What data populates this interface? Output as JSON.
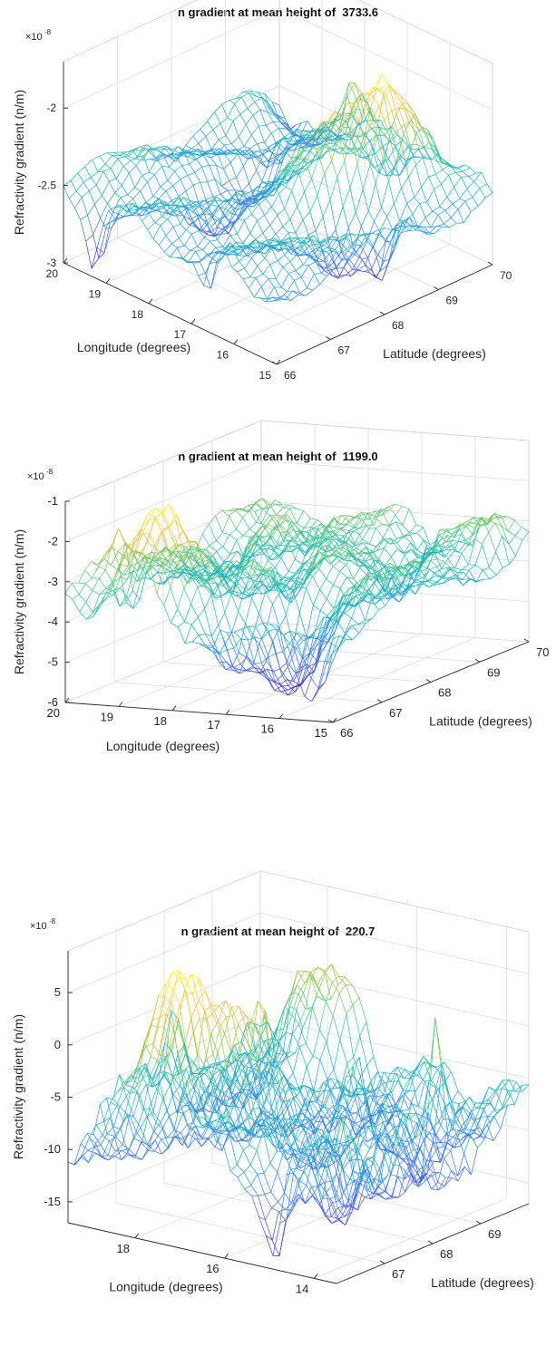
{
  "chart_data": [
    {
      "type": "surface",
      "title": "n gradient at mean height of  3733.6",
      "multiplier": "×10",
      "exponent": "-8",
      "xlabel": "Longitude (degrees)",
      "ylabel": "Latitude (degrees)",
      "zlabel": "Refractivity gradient (n/m)",
      "x_ticks": [
        "20",
        "19",
        "18",
        "17",
        "16",
        "15"
      ],
      "x_tick_values": [
        20,
        19,
        18,
        17,
        16,
        15
      ],
      "y_ticks": [
        "66",
        "67",
        "68",
        "69",
        "70"
      ],
      "y_tick_values": [
        66,
        67,
        68,
        69,
        70
      ],
      "z_ticks": [
        "-3",
        "-2.5",
        "-2"
      ],
      "z_tick_values": [
        -3,
        -2.5,
        -2
      ],
      "xlim": [
        15,
        20
      ],
      "ylim": [
        66,
        70
      ],
      "zlim": [
        -3,
        -1.7
      ],
      "z_range": [
        -2.95,
        -1.85
      ],
      "grid": true,
      "colormap": "parula"
    },
    {
      "type": "surface",
      "title": "n gradient at mean height of  1199.0",
      "multiplier": "×10",
      "exponent": "-8",
      "xlabel": "Longitude (degrees)",
      "ylabel": "Latitude (degrees)",
      "zlabel": "Refractivity gradient (n/m)",
      "x_ticks": [
        "20",
        "19",
        "18",
        "17",
        "16",
        "15"
      ],
      "x_tick_values": [
        20,
        19,
        18,
        17,
        16,
        15
      ],
      "y_ticks": [
        "66",
        "67",
        "68",
        "69",
        "70"
      ],
      "y_tick_values": [
        66,
        67,
        68,
        69,
        70
      ],
      "z_ticks": [
        "-6",
        "-5",
        "-4",
        "-3",
        "-2",
        "-1"
      ],
      "z_tick_values": [
        -6,
        -5,
        -4,
        -3,
        -2,
        -1
      ],
      "xlim": [
        15,
        20
      ],
      "ylim": [
        66,
        70
      ],
      "zlim": [
        -6,
        -1
      ],
      "z_range": [
        -5.8,
        -1.2
      ],
      "grid": true,
      "colormap": "parula"
    },
    {
      "type": "surface",
      "title": "n gradient at mean height of  220.7",
      "multiplier": "×10",
      "exponent": "-8",
      "xlabel": "Longitude (degrees)",
      "ylabel": "Latitude (degrees)",
      "zlabel": "Refractivity gradient (n/m)",
      "x_ticks": [
        "18",
        "16",
        "14"
      ],
      "x_tick_values": [
        18,
        16,
        14
      ],
      "y_ticks": [
        "67",
        "68",
        "69"
      ],
      "y_tick_values": [
        67,
        68,
        69
      ],
      "z_ticks": [
        "-15",
        "-10",
        "-5",
        "0",
        "5"
      ],
      "z_tick_values": [
        -15,
        -10,
        -5,
        0,
        5
      ],
      "xlim": [
        13.5,
        19.5
      ],
      "ylim": [
        66,
        70
      ],
      "zlim": [
        -17,
        9
      ],
      "z_range": [
        -16,
        8
      ],
      "grid": true,
      "colormap": "parula"
    }
  ]
}
